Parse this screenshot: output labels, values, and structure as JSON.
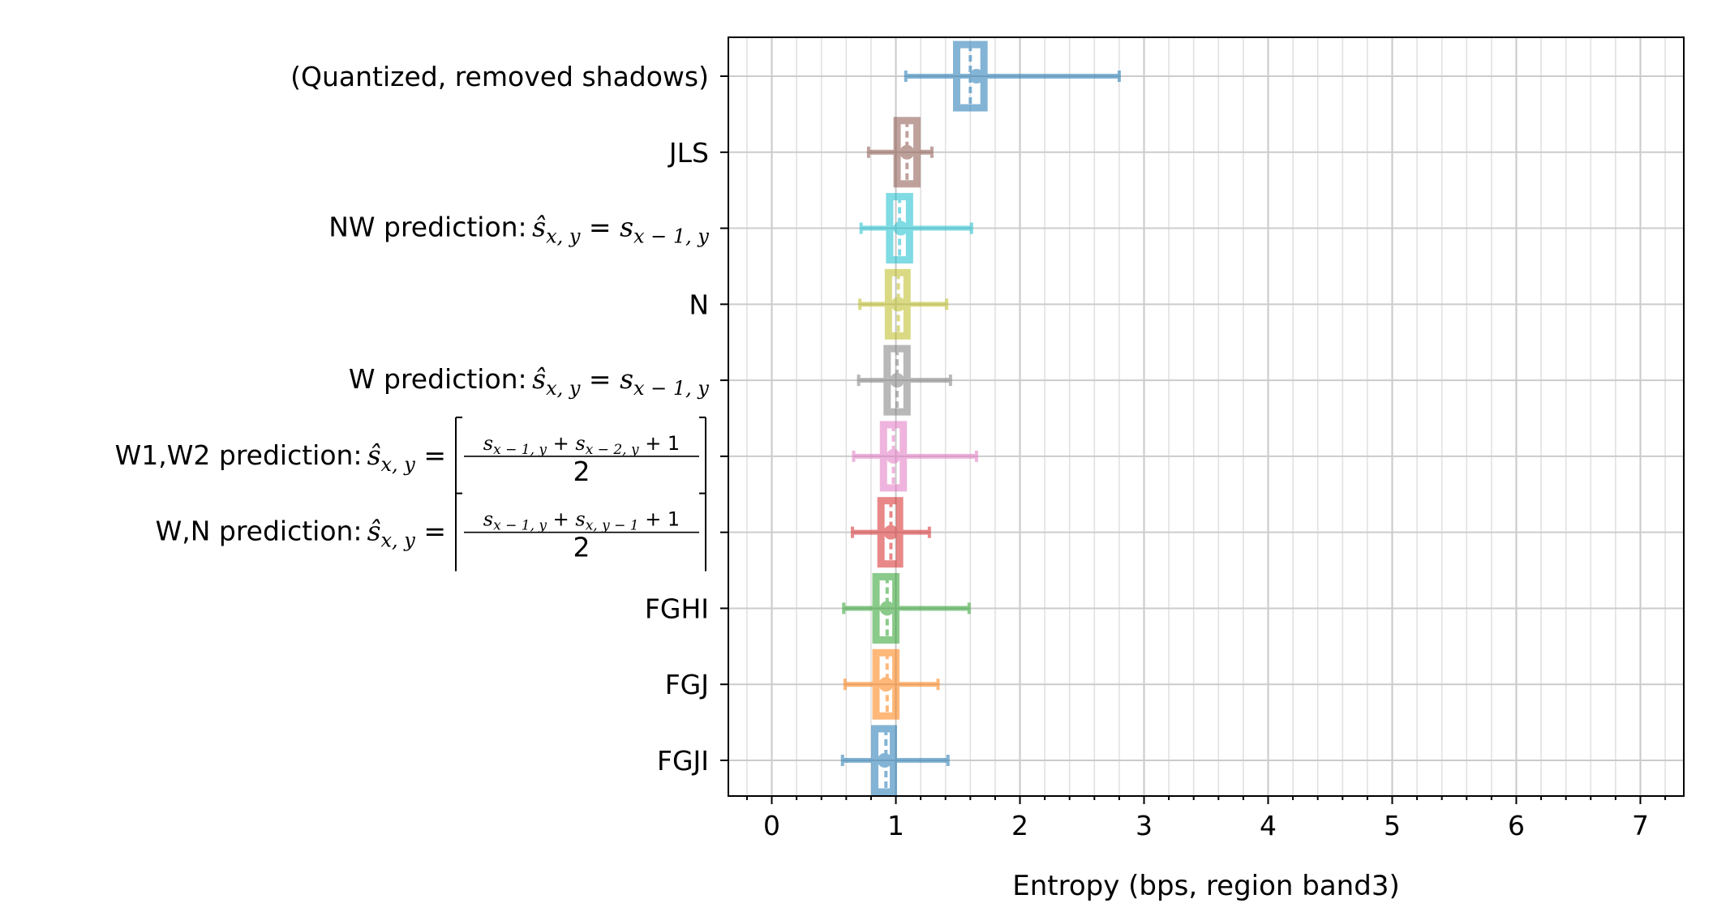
{
  "chart_data": {
    "type": "boxplot",
    "xlabel": "Entropy (bps, region band3)",
    "xlim": [
      -0.35,
      7.35
    ],
    "xticks": [
      0,
      1,
      2,
      3,
      4,
      5,
      6,
      7
    ],
    "grid": true,
    "categories": [
      {
        "label": "FGJI",
        "math": "",
        "color": "#1f77b4",
        "min": 0.57,
        "q1": 0.83,
        "median": 0.92,
        "mean": 0.91,
        "q3": 0.98,
        "max": 1.42
      },
      {
        "label": "FGJ",
        "math": "",
        "color": "#ff7f0e",
        "min": 0.59,
        "q1": 0.84,
        "median": 0.93,
        "mean": 0.92,
        "q3": 1.0,
        "max": 1.34
      },
      {
        "label": "FGHI",
        "math": "",
        "color": "#2ca02c",
        "min": 0.58,
        "q1": 0.84,
        "median": 0.93,
        "mean": 0.93,
        "q3": 1.0,
        "max": 1.59
      },
      {
        "label": "W,N prediction: ",
        "math": "ŝ x,y = ⌈(s x−1,y + s x,y−1 + 1) / 2⌉",
        "color": "#d62728",
        "min": 0.65,
        "q1": 0.88,
        "median": 0.96,
        "mean": 0.96,
        "q3": 1.03,
        "max": 1.27
      },
      {
        "label": "W1,W2 prediction: ",
        "math": "ŝ x,y = ⌈(s x−1,y + s x−2,y + 1) / 2⌉",
        "color": "#e377c2",
        "min": 0.66,
        "q1": 0.9,
        "median": 0.98,
        "mean": 0.98,
        "q3": 1.06,
        "max": 1.65
      },
      {
        "label": "W prediction: ",
        "math": "ŝ x,y = s x−1,y",
        "color": "#7f7f7f",
        "min": 0.7,
        "q1": 0.93,
        "median": 1.01,
        "mean": 1.01,
        "q3": 1.09,
        "max": 1.44
      },
      {
        "label": "N",
        "math": "",
        "color": "#bcbd22",
        "min": 0.71,
        "q1": 0.94,
        "median": 1.02,
        "mean": 1.02,
        "q3": 1.09,
        "max": 1.41
      },
      {
        "label": "NW prediction: ",
        "math": "ŝ x,y = s x−1,y",
        "color": "#17becf",
        "min": 0.72,
        "q1": 0.95,
        "median": 1.03,
        "mean": 1.04,
        "q3": 1.11,
        "max": 1.61
      },
      {
        "label": "JLS",
        "math": "",
        "color": "#8c564b",
        "min": 0.78,
        "q1": 1.01,
        "median": 1.09,
        "mean": 1.09,
        "q3": 1.17,
        "max": 1.29
      },
      {
        "label": "(Quantized, removed shadows)",
        "math": "",
        "color": "#1f77b4",
        "min": 1.08,
        "q1": 1.49,
        "median": 1.6,
        "mean": 1.65,
        "q3": 1.71,
        "max": 2.8
      }
    ]
  }
}
